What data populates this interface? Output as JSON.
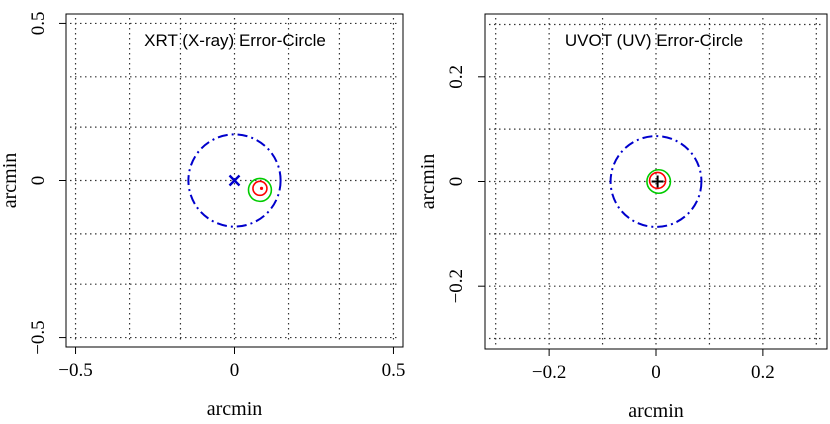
{
  "chart_data": [
    {
      "type": "scatter",
      "title": "XRT (X-ray) Error-Circle",
      "xlabel": "arcmin",
      "ylabel": "arcmin",
      "xlim": [
        -0.53,
        0.53
      ],
      "ylim": [
        -0.53,
        0.53
      ],
      "x_ticks": [
        -0.5,
        0,
        0.5
      ],
      "y_ticks": [
        -0.5,
        0,
        0.5
      ],
      "x_tick_labels": [
        "−0.5",
        "0",
        "0.5"
      ],
      "y_tick_labels": [
        "−0.5",
        "0",
        "0.5"
      ],
      "grid": true,
      "grid_style": "dotted",
      "grid_x": [
        -0.5,
        -0.33,
        -0.17,
        0,
        0.17,
        0.33,
        0.5
      ],
      "grid_y": [
        -0.5,
        -0.33,
        -0.17,
        0,
        0.17,
        0.33,
        0.5
      ],
      "circles": [
        {
          "center": [
            0,
            0
          ],
          "radius": 0.145,
          "color": "#0000cc",
          "style": "dash-dot"
        },
        {
          "center": [
            0.08,
            -0.03
          ],
          "radius": 0.036,
          "color": "#00cc00",
          "style": "solid"
        },
        {
          "center": [
            0.08,
            -0.025
          ],
          "radius": 0.022,
          "color": "#ff0000",
          "style": "solid"
        }
      ],
      "markers": [
        {
          "x": 0,
          "y": 0,
          "symbol": "x",
          "color": "#0000cc"
        },
        {
          "x": 0.085,
          "y": -0.025,
          "symbol": "dot",
          "color": "#ff0000"
        }
      ]
    },
    {
      "type": "scatter",
      "title": "UVOT (UV) Error-Circle",
      "xlabel": "arcmin",
      "ylabel": "arcmin",
      "xlim": [
        -0.32,
        0.32
      ],
      "ylim": [
        -0.32,
        0.32
      ],
      "x_ticks": [
        -0.2,
        0,
        0.2
      ],
      "y_ticks": [
        -0.2,
        0,
        0.2
      ],
      "x_tick_labels": [
        "−0.2",
        "0",
        "0.2"
      ],
      "y_tick_labels": [
        "−0.2",
        "0",
        "0.2"
      ],
      "grid": true,
      "grid_style": "dotted",
      "grid_x": [
        -0.3,
        -0.2,
        -0.1,
        0,
        0.1,
        0.2,
        0.3
      ],
      "grid_y": [
        -0.3,
        -0.2,
        -0.1,
        0,
        0.1,
        0.2,
        0.3
      ],
      "circles": [
        {
          "center": [
            0,
            0
          ],
          "radius": 0.085,
          "color": "#0000cc",
          "style": "dash-dot"
        },
        {
          "center": [
            0.005,
            0
          ],
          "radius": 0.022,
          "color": "#00cc00",
          "style": "solid"
        },
        {
          "center": [
            0.003,
            0.002
          ],
          "radius": 0.015,
          "color": "#ff0000",
          "style": "solid"
        }
      ],
      "markers": [
        {
          "x": 0.003,
          "y": 0,
          "symbol": "plus",
          "color": "#000000"
        }
      ]
    }
  ]
}
